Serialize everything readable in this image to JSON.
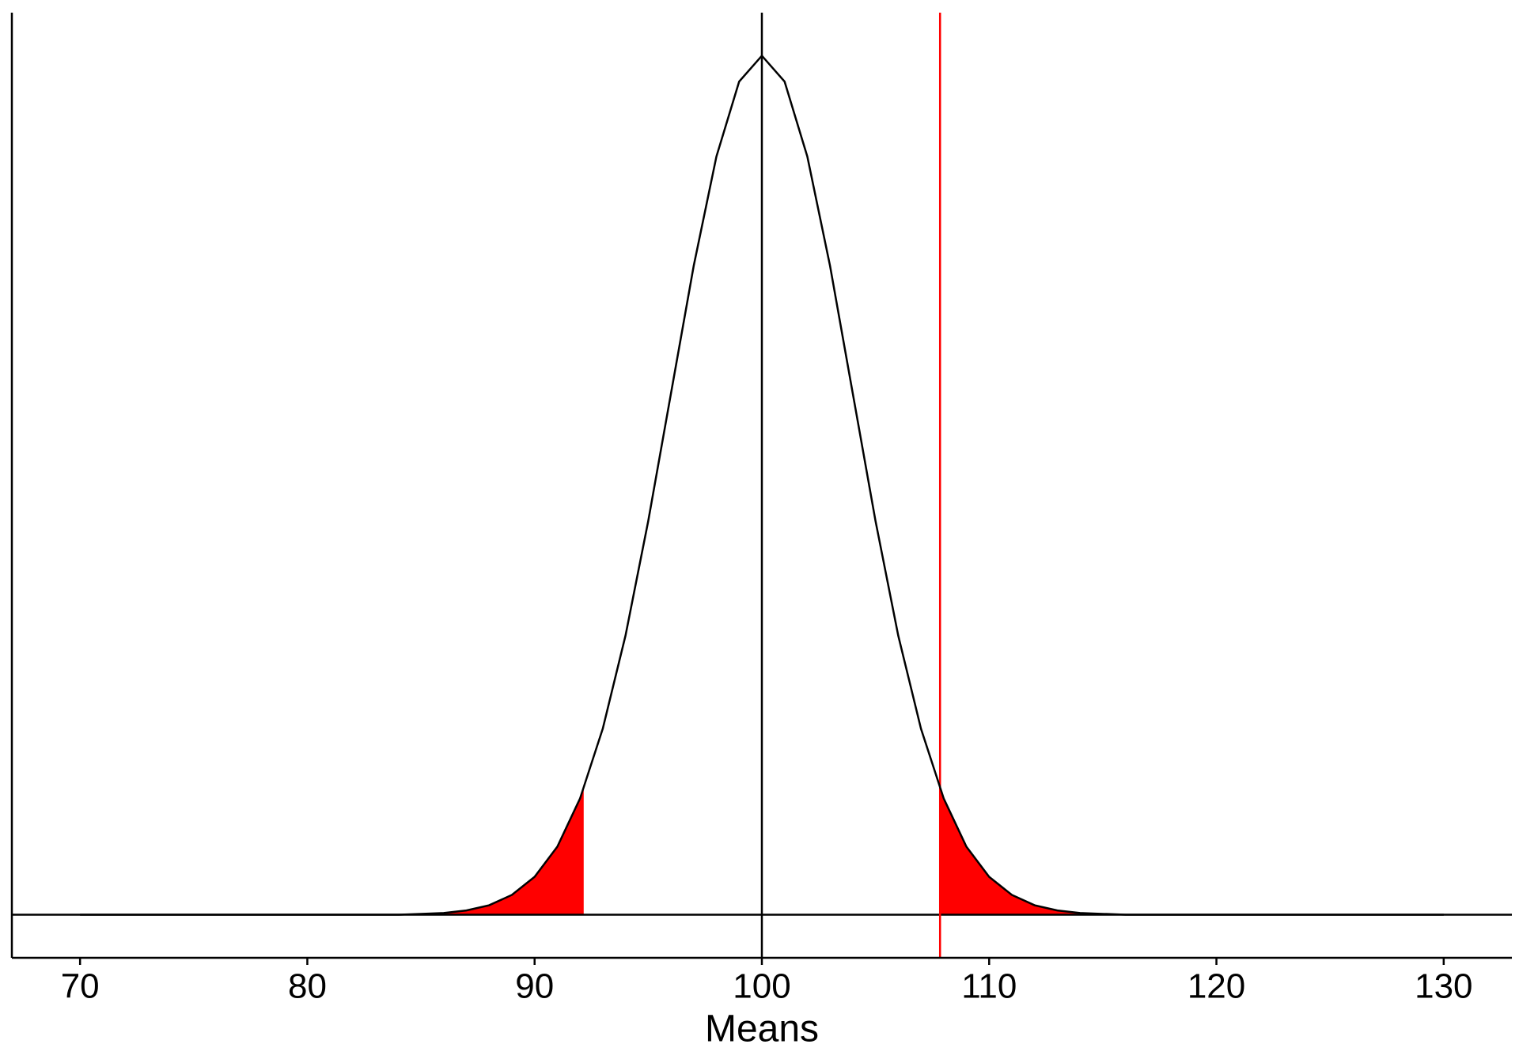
{
  "chart_data": {
    "type": "density",
    "x_label": "Means",
    "x": [
      70,
      71,
      72,
      73,
      74,
      75,
      76,
      77,
      78,
      79,
      80,
      81,
      82,
      83,
      84,
      85,
      86,
      87,
      88,
      89,
      90,
      91,
      92,
      93,
      94,
      95,
      96,
      97,
      98,
      99,
      100,
      101,
      102,
      103,
      104,
      105,
      106,
      107,
      108,
      109,
      110,
      111,
      112,
      113,
      114,
      115,
      116,
      117,
      118,
      119,
      120,
      121,
      122,
      123,
      124,
      125,
      126,
      127,
      128,
      129,
      130
    ],
    "values": [
      0,
      0,
      0,
      0,
      0,
      0,
      0,
      0,
      0,
      0,
      0,
      0,
      0,
      0,
      0,
      0.0001,
      0.0002,
      0.0005,
      0.0011,
      0.0023,
      0.0044,
      0.0079,
      0.0135,
      0.0216,
      0.0324,
      0.0457,
      0.0605,
      0.0753,
      0.088,
      0.0967,
      0.0997,
      0.0967,
      0.088,
      0.0753,
      0.0605,
      0.0457,
      0.0324,
      0.0216,
      0.0135,
      0.0079,
      0.0044,
      0.0023,
      0.0011,
      0.0005,
      0.0002,
      0.0001,
      0,
      0,
      0,
      0,
      0,
      0,
      0,
      0,
      0,
      0,
      0,
      0,
      0,
      0,
      0
    ],
    "color": "#000000",
    "shade_below": 92.16,
    "shade_above": 107.84,
    "shade_color": "#ff0000",
    "vlines": [
      {
        "x": 100,
        "color": "#000000"
      },
      {
        "x": 107.84,
        "color": "#ff0000"
      }
    ],
    "hline": 0,
    "xlim": [
      67,
      133
    ],
    "ylim": [
      -0.005,
      0.1047
    ],
    "xticks": [
      70,
      80,
      90,
      100,
      110,
      120,
      130
    ],
    "grid": false
  }
}
